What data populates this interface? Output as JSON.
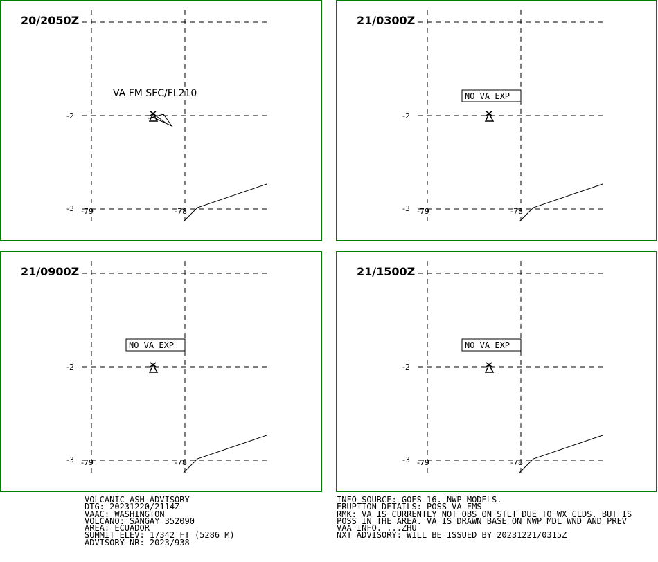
{
  "panels": [
    {
      "valid_time": "20/2050Z",
      "annotation": "VA FM SFC/FL210",
      "boxed": false,
      "lat_labels": [
        "-2",
        "-3"
      ],
      "lon_labels": [
        "-79",
        "-78"
      ]
    },
    {
      "valid_time": "21/0300Z",
      "annotation": "NO VA EXP",
      "boxed": true,
      "lat_labels": [
        "-2",
        "-3"
      ],
      "lon_labels": [
        "-79",
        "-78"
      ]
    },
    {
      "valid_time": "21/0900Z",
      "annotation": "NO VA EXP",
      "boxed": true,
      "lat_labels": [
        "-2",
        "-3"
      ],
      "lon_labels": [
        "-79",
        "-78"
      ]
    },
    {
      "valid_time": "21/1500Z",
      "annotation": "NO VA EXP",
      "boxed": true,
      "lat_labels": [
        "-2",
        "-3"
      ],
      "lon_labels": [
        "-79",
        "-78"
      ]
    }
  ],
  "advisory": {
    "left_lines": [
      "VOLCANIC ASH ADVISORY",
      "DTG: 20231220/2114Z",
      "VAAC: WASHINGTON",
      "VOLCANO: SANGAY 352090",
      "AREA: ECUADOR",
      "SUMMIT ELEV: 17342 FT (5286 M)",
      "ADVISORY NR: 2023/938"
    ],
    "right_lines": [
      "INFO SOURCE: GOES-16. NWP MODELS.",
      "ERUPTION DETAILS: POSS VA EMS",
      "RMK: VA IS CURRENTLY NOT OBS ON STLT DUE TO WX CLDS. BUT IS",
      "POSS IN THE AREA. VA IS DRAWN BASE ON NWP MDL WND AND PREV",
      "VAA INFO. ...ZHU",
      "NXT ADVISORY: WILL BE ISSUED BY 20231221/0315Z"
    ]
  }
}
